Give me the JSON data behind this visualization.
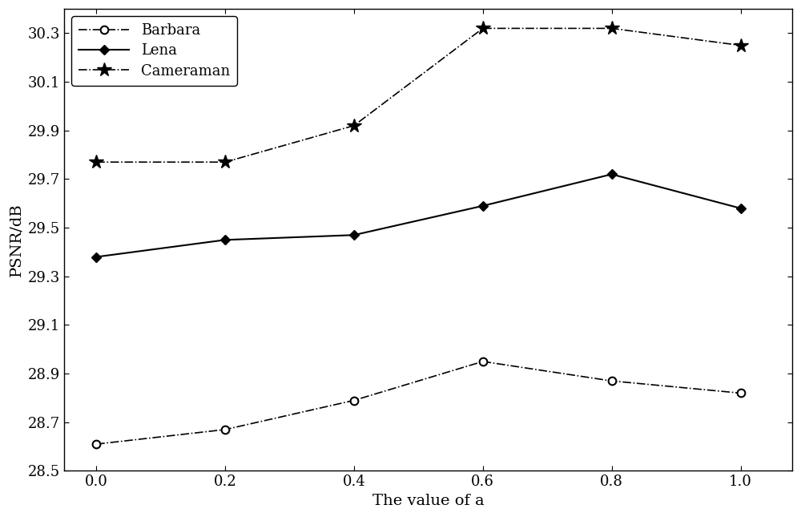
{
  "x": [
    0,
    0.2,
    0.4,
    0.6,
    0.8,
    1.0
  ],
  "barbara": [
    28.61,
    28.67,
    28.79,
    28.95,
    28.87,
    28.82
  ],
  "lena": [
    29.38,
    29.45,
    29.47,
    29.59,
    29.72,
    29.58
  ],
  "cameraman": [
    29.77,
    29.77,
    29.92,
    30.32,
    30.32,
    30.25
  ],
  "xlabel": "The value of a",
  "ylabel": "PSNR/dB",
  "ylim": [
    28.5,
    30.4
  ],
  "xlim": [
    -0.05,
    1.08
  ],
  "yticks": [
    28.5,
    28.7,
    28.9,
    29.1,
    29.3,
    29.5,
    29.7,
    29.9,
    30.1,
    30.3
  ],
  "xticks": [
    0,
    0.2,
    0.4,
    0.6,
    0.8,
    1.0
  ],
  "legend_labels": [
    "Barbara",
    "Lena",
    "Cameraman"
  ],
  "line_color": "black",
  "fontsize": 14
}
